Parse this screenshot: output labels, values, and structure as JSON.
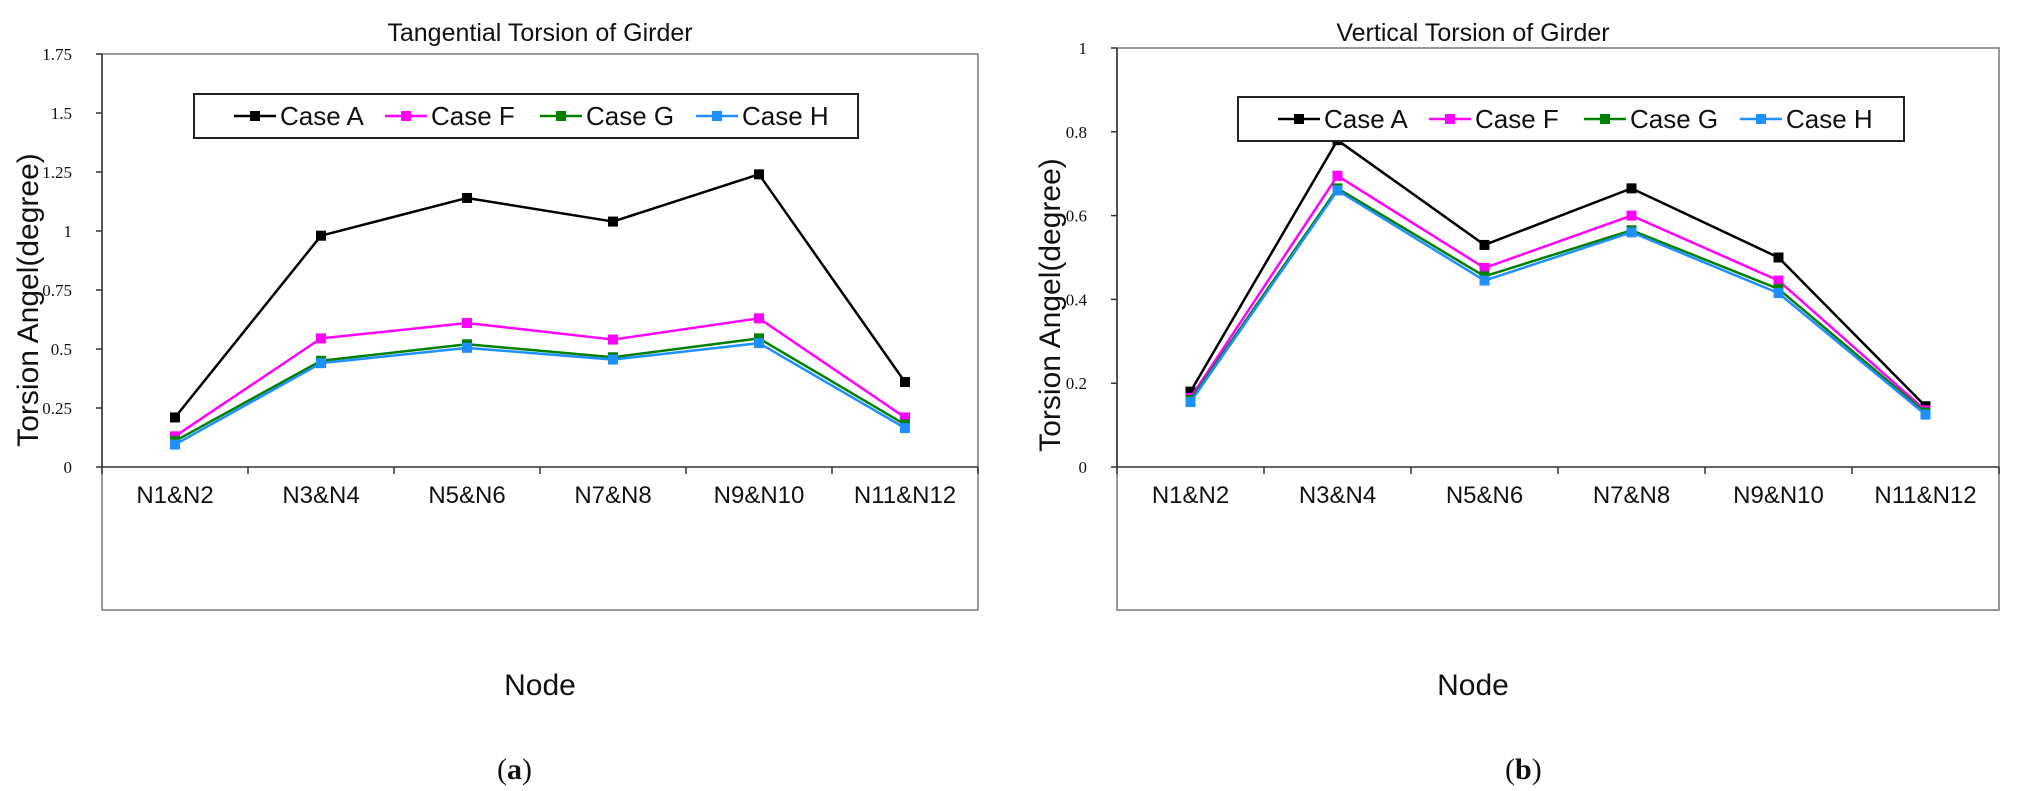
{
  "chart_data": [
    {
      "type": "line",
      "title": "Tangential Torsion of Girder",
      "xlabel": "Node",
      "ylabel": "Torsion Angel(degree)",
      "categories": [
        "N1&N2",
        "N3&N4",
        "N5&N6",
        "N7&N8",
        "N9&N10",
        "N11&N12"
      ],
      "ylim": [
        0,
        1.75
      ],
      "yticks": [
        "0",
        "0.25",
        "0.5",
        "0.75",
        "1",
        "1.25",
        "1.5",
        "1.75"
      ],
      "ytick_values": [
        0,
        0.25,
        0.5,
        0.75,
        1,
        1.25,
        1.5,
        1.75
      ],
      "legend": "top",
      "grid": false,
      "caption_prefix": "(",
      "caption_letter": "a",
      "caption_suffix": ")",
      "series": [
        {
          "name": "Case A",
          "color": "#000000",
          "values": [
            0.21,
            0.98,
            1.14,
            1.04,
            1.24,
            0.36
          ]
        },
        {
          "name": "Case F",
          "color": "#ff00ff",
          "values": [
            0.13,
            0.545,
            0.61,
            0.54,
            0.63,
            0.21
          ]
        },
        {
          "name": "Case G",
          "color": "#008000",
          "values": [
            0.11,
            0.45,
            0.52,
            0.465,
            0.545,
            0.18
          ]
        },
        {
          "name": "Case H",
          "color": "#1e90ff",
          "values": [
            0.095,
            0.44,
            0.505,
            0.455,
            0.525,
            0.165
          ]
        }
      ]
    },
    {
      "type": "line",
      "title": "Vertical Torsion of Girder",
      "xlabel": "Node",
      "ylabel": "Torsion Angel(degree)",
      "categories": [
        "N1&N2",
        "N3&N4",
        "N5&N6",
        "N7&N8",
        "N9&N10",
        "N11&N12"
      ],
      "ylim": [
        0,
        1
      ],
      "yticks": [
        "0",
        "0.2",
        "0.4",
        "0.6",
        "0.8",
        "1"
      ],
      "ytick_values": [
        0,
        0.2,
        0.4,
        0.6,
        0.8,
        1
      ],
      "legend": "top",
      "grid": false,
      "caption_prefix": "(",
      "caption_letter": "b",
      "caption_suffix": ")",
      "series": [
        {
          "name": "Case A",
          "color": "#000000",
          "values": [
            0.18,
            0.78,
            0.53,
            0.665,
            0.5,
            0.145
          ]
        },
        {
          "name": "Case F",
          "color": "#ff00ff",
          "values": [
            0.165,
            0.695,
            0.475,
            0.6,
            0.445,
            0.135
          ]
        },
        {
          "name": "Case G",
          "color": "#008000",
          "values": [
            0.16,
            0.665,
            0.455,
            0.565,
            0.425,
            0.13
          ]
        },
        {
          "name": "Case H",
          "color": "#1e90ff",
          "values": [
            0.155,
            0.66,
            0.445,
            0.56,
            0.415,
            0.125
          ]
        }
      ]
    }
  ]
}
